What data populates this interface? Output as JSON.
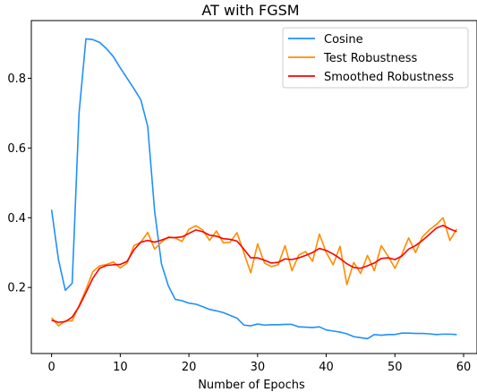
{
  "chart_data": {
    "type": "line",
    "title": "AT with FGSM",
    "xlabel": "Number of Epochs",
    "ylabel": "",
    "xlim": [
      -2.95,
      61.95
    ],
    "ylim": [
      0.0105,
      0.9655
    ],
    "xticks": [
      0,
      10,
      20,
      30,
      40,
      50,
      60
    ],
    "yticks": [
      0.2,
      0.4,
      0.6,
      0.8
    ],
    "ytick_labels": [
      "0.2",
      "0.4",
      "0.6",
      "0.8"
    ],
    "grid": false,
    "legend_position": "top-right",
    "x": [
      0,
      1,
      2,
      3,
      4,
      5,
      6,
      7,
      8,
      9,
      10,
      11,
      12,
      13,
      14,
      15,
      16,
      17,
      18,
      19,
      20,
      21,
      22,
      23,
      24,
      25,
      26,
      27,
      28,
      29,
      30,
      31,
      32,
      33,
      34,
      35,
      36,
      37,
      38,
      39,
      40,
      41,
      42,
      43,
      44,
      45,
      46,
      47,
      48,
      49,
      50,
      51,
      52,
      53,
      54,
      55,
      56,
      57,
      58,
      59
    ],
    "series": [
      {
        "name": "Cosine",
        "color": "#1e90ff",
        "values": [
          0.423,
          0.28,
          0.192,
          0.212,
          0.7,
          0.913,
          0.911,
          0.903,
          0.885,
          0.862,
          0.83,
          0.8,
          0.77,
          0.738,
          0.662,
          0.42,
          0.268,
          0.205,
          0.166,
          0.162,
          0.155,
          0.152,
          0.145,
          0.137,
          0.133,
          0.128,
          0.12,
          0.112,
          0.092,
          0.09,
          0.095,
          0.092,
          0.093,
          0.093,
          0.094,
          0.094,
          0.087,
          0.086,
          0.085,
          0.087,
          0.078,
          0.075,
          0.072,
          0.067,
          0.059,
          0.056,
          0.053,
          0.065,
          0.063,
          0.065,
          0.065,
          0.069,
          0.069,
          0.068,
          0.068,
          0.067,
          0.065,
          0.066,
          0.066,
          0.065
        ]
      },
      {
        "name": "Test Robustness",
        "color": "#ff8c00",
        "values": [
          0.113,
          0.09,
          0.104,
          0.104,
          0.148,
          0.194,
          0.245,
          0.262,
          0.266,
          0.273,
          0.256,
          0.27,
          0.32,
          0.33,
          0.358,
          0.31,
          0.33,
          0.345,
          0.342,
          0.332,
          0.367,
          0.377,
          0.365,
          0.335,
          0.362,
          0.328,
          0.33,
          0.357,
          0.3,
          0.242,
          0.325,
          0.27,
          0.26,
          0.265,
          0.32,
          0.248,
          0.293,
          0.303,
          0.275,
          0.353,
          0.3,
          0.265,
          0.318,
          0.208,
          0.272,
          0.24,
          0.292,
          0.248,
          0.32,
          0.29,
          0.255,
          0.295,
          0.342,
          0.3,
          0.345,
          0.365,
          0.38,
          0.4,
          0.335,
          0.368
        ]
      },
      {
        "name": "Smoothed Robustness",
        "color": "#ff0000",
        "values": [
          0.106,
          0.1,
          0.102,
          0.115,
          0.145,
          0.185,
          0.226,
          0.255,
          0.263,
          0.265,
          0.266,
          0.275,
          0.308,
          0.33,
          0.335,
          0.33,
          0.336,
          0.343,
          0.343,
          0.345,
          0.355,
          0.365,
          0.36,
          0.35,
          0.347,
          0.34,
          0.338,
          0.333,
          0.31,
          0.285,
          0.285,
          0.278,
          0.27,
          0.272,
          0.282,
          0.28,
          0.285,
          0.292,
          0.3,
          0.312,
          0.306,
          0.296,
          0.283,
          0.268,
          0.257,
          0.255,
          0.262,
          0.27,
          0.283,
          0.285,
          0.28,
          0.29,
          0.31,
          0.32,
          0.335,
          0.352,
          0.37,
          0.378,
          0.368,
          0.36
        ]
      }
    ]
  }
}
